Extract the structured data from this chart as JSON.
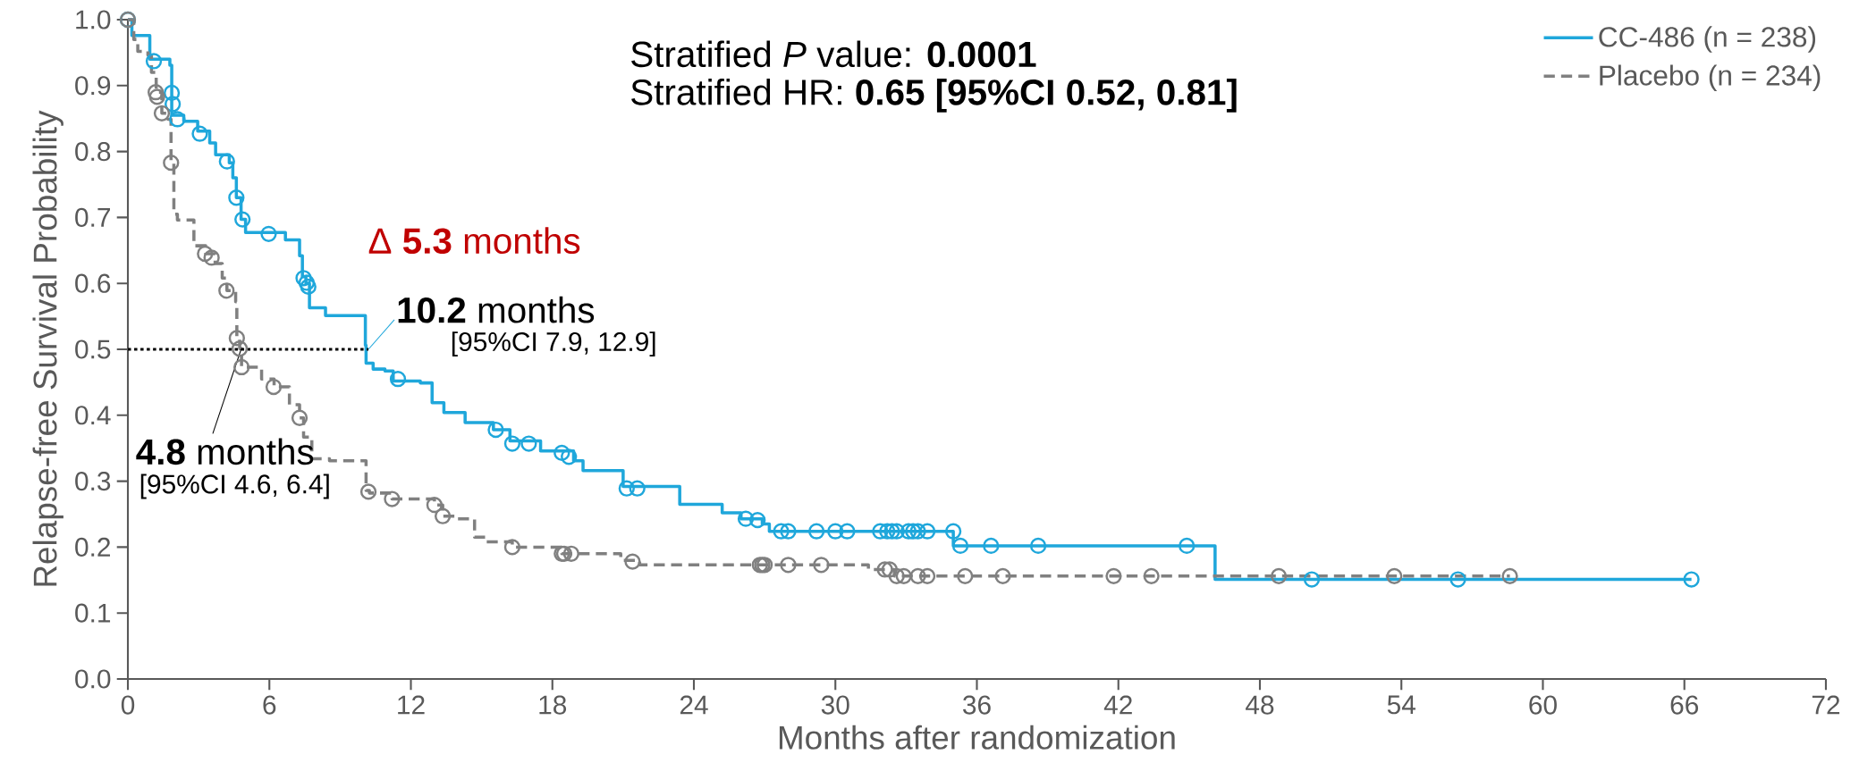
{
  "chart_data": {
    "type": "step",
    "xlabel": "Months after randomization",
    "ylabel": "Relapse-free Survival Probability",
    "xlim": [
      0,
      72
    ],
    "xticks": [
      0,
      6,
      12,
      18,
      24,
      30,
      36,
      42,
      48,
      54,
      60,
      66,
      72
    ],
    "ylim": [
      0,
      1
    ],
    "yticks": [
      {
        "value": 0,
        "label": "0.0"
      },
      {
        "value": 0.1,
        "label": "0.1"
      },
      {
        "value": 0.2,
        "label": "0.2"
      },
      {
        "value": 0.3,
        "label": "0.3"
      },
      {
        "value": 0.4,
        "label": "0.4"
      },
      {
        "value": 0.5,
        "label": "0.5"
      },
      {
        "value": 0.6,
        "label": "0.6"
      },
      {
        "value": 0.7,
        "label": "0.7"
      },
      {
        "value": 0.8,
        "label": "0.8"
      },
      {
        "value": 0.9,
        "label": "0.9"
      },
      {
        "value": 1,
        "label": "1.0"
      }
    ],
    "legend": "top right",
    "grid": false,
    "series": [
      {
        "name": "CC-486 (n = 238)",
        "color": "#1fa7db",
        "line_style": "solid",
        "marker": "none",
        "x": [
          0,
          0.17,
          0.93,
          1.78,
          1.86,
          2.37,
          2.96,
          3.47,
          3.72,
          4.3,
          4.45,
          4.6,
          4.8,
          4.99,
          6.68,
          7.28,
          7.4,
          7.55,
          7.7,
          8.38,
          10.07,
          10.1,
          10.4,
          10.9,
          11.25,
          12.4,
          12.9,
          13.4,
          14.3,
          15.5,
          16.2,
          17.5,
          18.9,
          19.3,
          21.0,
          23.4,
          25.2,
          26.0,
          26.9,
          27.2,
          35.0,
          46.1,
          66.3
        ],
        "values": [
          1.0,
          0.976,
          0.94,
          0.931,
          0.855,
          0.846,
          0.831,
          0.813,
          0.795,
          0.783,
          0.76,
          0.73,
          0.697,
          0.677,
          0.666,
          0.642,
          0.61,
          0.6,
          0.563,
          0.551,
          0.506,
          0.479,
          0.47,
          0.467,
          0.452,
          0.449,
          0.419,
          0.404,
          0.389,
          0.378,
          0.361,
          0.346,
          0.331,
          0.316,
          0.292,
          0.265,
          0.252,
          0.243,
          0.235,
          0.224,
          0.202,
          0.151,
          0.151
        ]
      },
      {
        "name": "Placebo (n = 234)",
        "color": "#808080",
        "line_style": "dashed",
        "marker": "none",
        "x": [
          0,
          0.25,
          0.42,
          0.85,
          1.0,
          1.2,
          1.44,
          1.7,
          1.83,
          1.95,
          2.1,
          2.8,
          3.3,
          3.7,
          4.0,
          4.2,
          4.57,
          4.62,
          4.74,
          4.82,
          5.67,
          6.2,
          6.85,
          7.28,
          7.45,
          7.8,
          8.55,
          10.1,
          10.24,
          11.2,
          13.0,
          13.35,
          13.85,
          14.7,
          15.2,
          16.3,
          18.4,
          20.9,
          21.7,
          31.4,
          32.5,
          58.6
        ],
        "values": [
          1.0,
          0.97,
          0.952,
          0.946,
          0.92,
          0.89,
          0.858,
          0.849,
          0.783,
          0.705,
          0.696,
          0.657,
          0.645,
          0.63,
          0.608,
          0.589,
          0.572,
          0.517,
          0.501,
          0.473,
          0.455,
          0.443,
          0.416,
          0.396,
          0.367,
          0.334,
          0.331,
          0.286,
          0.282,
          0.273,
          0.264,
          0.247,
          0.243,
          0.215,
          0.208,
          0.2,
          0.19,
          0.18,
          0.173,
          0.166,
          0.156,
          0.156
        ]
      },
      {
        "type": "scatter",
        "color": "#1fa7db",
        "marker": "circle",
        "x": [
          0,
          1.1,
          1.86,
          1.9,
          2.1,
          3.05,
          4.2,
          4.6,
          4.86,
          5.97,
          7.45,
          7.58,
          7.65,
          11.45,
          15.6,
          16.3,
          17.0,
          18.4,
          18.7,
          21.15,
          21.6,
          26.2,
          26.7,
          27.7,
          28.0,
          29.2,
          30.0,
          30.5,
          31.9,
          32.2,
          32.4,
          32.6,
          33.1,
          33.3,
          33.5,
          33.9,
          35.0,
          35.3,
          36.6,
          38.6,
          44.9,
          50.2,
          56.4,
          66.3
        ],
        "values": [
          1.0,
          0.937,
          0.889,
          0.872,
          0.849,
          0.827,
          0.785,
          0.73,
          0.697,
          0.675,
          0.608,
          0.601,
          0.595,
          0.455,
          0.378,
          0.357,
          0.357,
          0.343,
          0.337,
          0.289,
          0.289,
          0.243,
          0.241,
          0.224,
          0.224,
          0.224,
          0.224,
          0.224,
          0.224,
          0.224,
          0.224,
          0.224,
          0.224,
          0.224,
          0.224,
          0.224,
          0.224,
          0.202,
          0.202,
          0.202,
          0.202,
          0.151,
          0.151,
          0.151
        ]
      },
      {
        "type": "scatter",
        "color": "#808080",
        "marker": "circle",
        "x": [
          0,
          1.18,
          1.24,
          1.44,
          1.83,
          3.27,
          3.55,
          4.18,
          4.62,
          4.74,
          4.82,
          6.18,
          7.28,
          10.2,
          11.2,
          13.0,
          13.35,
          16.3,
          18.4,
          18.5,
          18.8,
          21.4,
          26.8,
          26.9,
          27.0,
          28.0,
          29.4,
          32.1,
          32.3,
          32.6,
          32.9,
          33.5,
          33.9,
          35.5,
          37.1,
          41.8,
          43.4,
          48.8,
          53.7,
          58.6
        ],
        "values": [
          1.0,
          0.89,
          0.883,
          0.858,
          0.783,
          0.645,
          0.639,
          0.589,
          0.517,
          0.501,
          0.473,
          0.443,
          0.396,
          0.284,
          0.273,
          0.264,
          0.247,
          0.2,
          0.19,
          0.19,
          0.19,
          0.178,
          0.173,
          0.173,
          0.173,
          0.173,
          0.173,
          0.166,
          0.166,
          0.156,
          0.156,
          0.156,
          0.156,
          0.156,
          0.156,
          0.156,
          0.156,
          0.156,
          0.156,
          0.156
        ]
      },
      {
        "type": "line",
        "color": "#000000",
        "line_style": "dotted",
        "marker": "none",
        "x": [
          0,
          10.2
        ],
        "values": [
          0.5,
          0.5
        ]
      }
    ],
    "annotations": [
      "Stratified *P* value: **0.0001**",
      "Stratified HR: **0.65 [95%CI 0.52, 0.81]**",
      "Δ **5.3** months",
      {
        "text": "**10.2** months",
        "x": 10.2,
        "y": 0.5
      },
      "[95%CI 7.9, 12.9]",
      {
        "text": "**4.8** months",
        "x": 4.8,
        "y": 0.5
      },
      "[95%CI 4.6, 6.4]"
    ]
  }
}
